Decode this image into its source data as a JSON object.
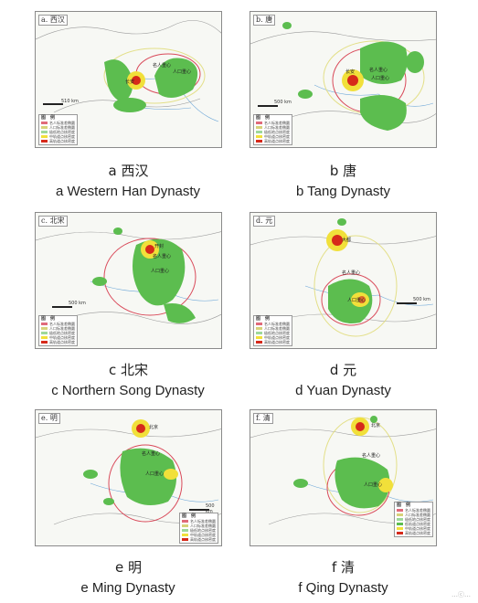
{
  "panels": [
    {
      "tag": "a. 西汉",
      "cap_zh": "a 西汉",
      "cap_en": "a Western Han Dynasty",
      "scale": "510 km",
      "labels": [
        "长安",
        "名人重心",
        "人口重心"
      ]
    },
    {
      "tag": "b. 唐",
      "cap_zh": "b 唐",
      "cap_en": "b Tang Dynasty",
      "scale": "500 km",
      "labels": [
        "长安",
        "名人重心",
        "人口重心"
      ]
    },
    {
      "tag": "c. 北宋",
      "cap_zh": "c 北宋",
      "cap_en": "c Northern Song Dynasty",
      "scale": "500 km",
      "labels": [
        "开封",
        "名人重心",
        "人口重心"
      ]
    },
    {
      "tag": "d. 元",
      "cap_zh": "d 元",
      "cap_en": "d Yuan Dynasty",
      "scale": "500 km",
      "labels": [
        "大都",
        "名人重心",
        "人口重心"
      ]
    },
    {
      "tag": "e. 明",
      "cap_zh": "e 明",
      "cap_en": "e Ming Dynasty",
      "scale": "500 km",
      "labels": [
        "北京",
        "名人重心",
        "人口重心"
      ]
    },
    {
      "tag": "f. 清",
      "cap_zh": "f 清",
      "cap_en": "f Qing Dynasty",
      "scale": "500 km",
      "labels": [
        "北京",
        "名人重心",
        "人口重心"
      ]
    }
  ],
  "legend": {
    "title": "图　例",
    "items": [
      "名人标准差椭圆",
      "人口标准差椭圆",
      "极低地点核密度",
      "低轨道点核密度",
      "中轨道点核密度",
      "高轨道点核密度"
    ],
    "colors": [
      "#e06a7a",
      "#d7d27a",
      "#9ed89a",
      "#5cbd4f",
      "#f1e03a",
      "#d62a1a"
    ]
  },
  "watermark": "…ⓒ…"
}
